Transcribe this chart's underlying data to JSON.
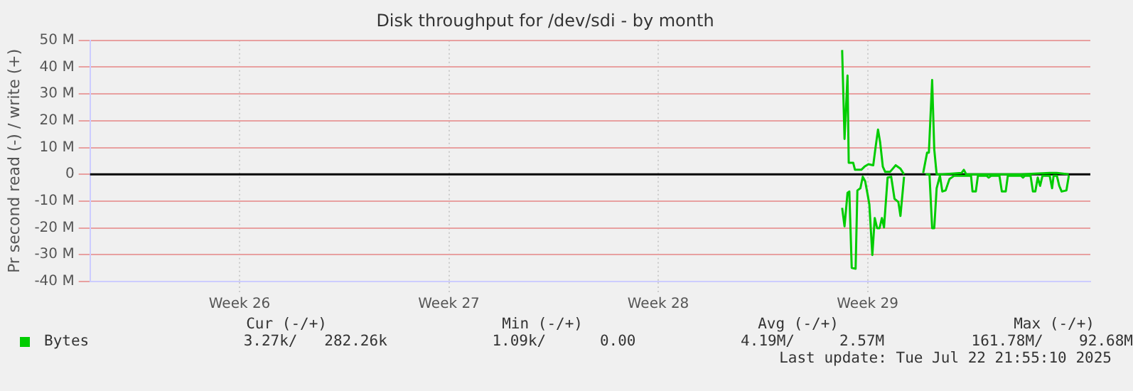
{
  "chart_data": {
    "type": "line",
    "title": "Disk throughput for /dev/sdi - by month",
    "ylabel": "Pr second read (-) / write (+)",
    "xlim": [
      "2025-06-18",
      "2025-07-21T10:48"
    ],
    "xticks": [
      {
        "value": "2025-06-23",
        "label": "Week 26"
      },
      {
        "value": "2025-06-30",
        "label": "Week 27"
      },
      {
        "value": "2025-07-07",
        "label": "Week 28"
      },
      {
        "value": "2025-07-14",
        "label": "Week 29"
      }
    ],
    "ylim": [
      -40,
      50
    ],
    "yticks": [
      {
        "value": -40,
        "label": "-40 M"
      },
      {
        "value": -30,
        "label": "-30 M"
      },
      {
        "value": -20,
        "label": "-20 M"
      },
      {
        "value": -10,
        "label": "-10 M"
      },
      0,
      {
        "value": 10,
        "label": "10 M"
      },
      {
        "value": 20,
        "label": "20 M"
      },
      {
        "value": 30,
        "label": "30 M"
      },
      {
        "value": 40,
        "label": "40 M"
      },
      {
        "value": 50,
        "label": "50 M"
      }
    ],
    "grid": true,
    "legend": "bottom",
    "marker": "none",
    "line_style": "solid",
    "ref_lines": [
      {
        "axis": "y",
        "value": 0,
        "color": "#000000"
      }
    ],
    "series": [
      {
        "name": "Bytes",
        "color": "#00cc00",
        "x": [
          "2025-07-13T03:36",
          "2025-07-13T05:31",
          "2025-07-13T07:55",
          "2025-07-13T08:53",
          "2025-07-13T12:29",
          "2025-07-13T13:55",
          "2025-07-13T18:58",
          "2025-07-13T21:36",
          "2025-07-14T00:43",
          "2025-07-14T04:34",
          "2025-07-14T06:29",
          "2025-07-14T08:24",
          "2025-07-14T10:05",
          "2025-07-14T12:14",
          "2025-07-14T14:10",
          "2025-07-14T18:00",
          "2025-07-14T22:34",
          "2025-07-15T02:24",
          "2025-07-15T05:17",
          "2025-07-15T12:00",
          "2025-07-15T20:38",
          "2025-07-15T23:46",
          "2025-07-16T01:12",
          "2025-07-16T03:50",
          "2025-07-16T05:31",
          "2025-07-16T07:26",
          "2025-07-16T12:00",
          "2025-07-16T21:36",
          "2025-07-17T03:22",
          "2025-07-17T05:17",
          "2025-07-17T07:12",
          "2025-07-17T11:02",
          "2025-07-18T09:50",
          "2025-07-19T03:07",
          "2025-07-20T02:10",
          "2025-07-20T07:55",
          "2025-07-20T17:31"
        ],
        "values": [
          46.4,
          13.2,
          36.9,
          4.3,
          4.3,
          1.7,
          1.7,
          2.9,
          3.8,
          3.4,
          10.3,
          16.7,
          12,
          2.9,
          0.9,
          0.9,
          3.4,
          2.1,
          0,
          null,
          0.5,
          8.1,
          8.1,
          35.2,
          9.4,
          0,
          0,
          0.3,
          0.5,
          1.7,
          0,
          0,
          0,
          0,
          0.5,
          0.5,
          0
        ]
      },
      {
        "color": "#00cc00",
        "x": [
          "2025-07-13T03:36",
          "2025-07-13T05:31",
          "2025-07-13T07:55",
          "2025-07-13T09:22",
          "2025-07-13T11:17",
          "2025-07-13T14:24",
          "2025-07-13T15:50",
          "2025-07-13T18:14",
          "2025-07-13T20:10",
          "2025-07-13T22:05",
          "2025-07-14T00:00",
          "2025-07-14T01:26",
          "2025-07-14T03:50",
          "2025-07-14T05:46",
          "2025-07-14T07:41",
          "2025-07-14T09:36",
          "2025-07-14T11:31",
          "2025-07-14T13:12",
          "2025-07-14T16:05",
          "2025-07-14T18:58",
          "2025-07-14T21:36",
          "2025-07-15T00:43",
          "2025-07-15T02:24",
          "2025-07-15T05:17",
          "2025-07-15T12:00",
          "2025-07-15T22:34",
          "2025-07-16T01:41",
          "2025-07-16T03:50",
          "2025-07-16T05:31",
          "2025-07-16T07:26",
          "2025-07-16T10:05",
          "2025-07-16T12:00",
          "2025-07-16T14:38",
          "2025-07-16T17:46",
          "2025-07-16T21:36",
          "2025-07-17T11:02",
          "2025-07-17T12:14",
          "2025-07-17T14:53",
          "2025-07-17T16:34",
          "2025-07-17T23:31",
          "2025-07-18T01:12",
          "2025-07-18T03:22",
          "2025-07-18T09:50",
          "2025-07-18T11:46",
          "2025-07-18T14:53",
          "2025-07-18T16:34",
          "2025-07-19T03:07",
          "2025-07-19T04:48",
          "2025-07-19T06:14",
          "2025-07-19T10:48",
          "2025-07-19T12:43",
          "2025-07-19T14:38",
          "2025-07-19T16:34",
          "2025-07-19T18:29",
          "2025-07-19T20:24",
          "2025-07-20T02:10",
          "2025-07-20T04:05",
          "2025-07-20T05:17",
          "2025-07-20T07:55",
          "2025-07-20T09:50",
          "2025-07-20T11:46",
          "2025-07-20T15:36",
          "2025-07-20T17:31"
        ],
        "values": [
          -12.5,
          -19.4,
          -6.9,
          -6.4,
          -34.9,
          -35.2,
          -6,
          -5.2,
          -0.9,
          -2.6,
          -7.4,
          -11.2,
          -30.1,
          -16.3,
          -20.1,
          -20.1,
          -16.3,
          -19.8,
          -1.2,
          -0.9,
          -9.1,
          -10.3,
          -15.5,
          -0.9,
          null,
          0,
          0,
          -20.1,
          -20.1,
          -5.2,
          -0.5,
          -6.4,
          -6,
          -1.7,
          -0.5,
          -0.5,
          -6.4,
          -6.4,
          -0.5,
          -0.5,
          -1.2,
          -0.5,
          -0.5,
          -6.4,
          -6.4,
          -0.5,
          -0.5,
          -1.2,
          -0.5,
          -0.5,
          -6.4,
          -6.4,
          -1.2,
          -4.3,
          -0.5,
          -0.5,
          -5.2,
          -0.5,
          -0.5,
          -4.3,
          -6.4,
          -6,
          -0.5
        ]
      }
    ],
    "annotations": [
      "Cur (-/+)",
      "Min (-/+)",
      "Avg (-/+)",
      "Max (-/+)",
      "3.27k/",
      "282.26k",
      "1.09k/",
      "0.00",
      "4.19M/",
      "2.57M",
      "161.78M/",
      "92.68M",
      "Last update: Tue Jul 22 21:55:10 2025"
    ]
  }
}
